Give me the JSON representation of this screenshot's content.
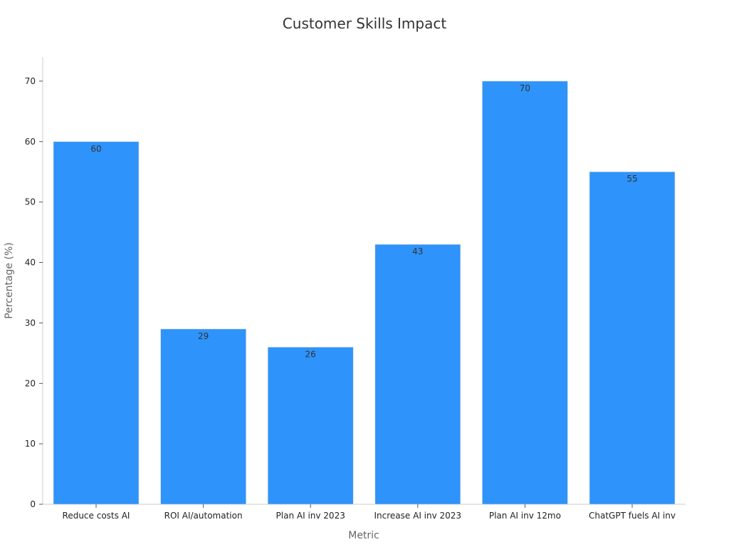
{
  "chart_data": {
    "type": "bar",
    "title": "Customer Skills Impact",
    "xlabel": "Metric",
    "ylabel": "Percentage (%)",
    "categories": [
      "Reduce costs AI",
      "ROI AI/automation",
      "Plan AI inv 2023",
      "Increase AI inv 2023",
      "Plan AI inv 12mo",
      "ChatGPT fuels AI inv"
    ],
    "values": [
      60,
      29,
      26,
      43,
      70,
      55
    ],
    "ylim": [
      0,
      74
    ],
    "yticks": [
      0,
      10,
      20,
      30,
      40,
      50,
      60,
      70
    ],
    "bar_color": "#2e93fa",
    "grid": false,
    "legend": "none"
  }
}
